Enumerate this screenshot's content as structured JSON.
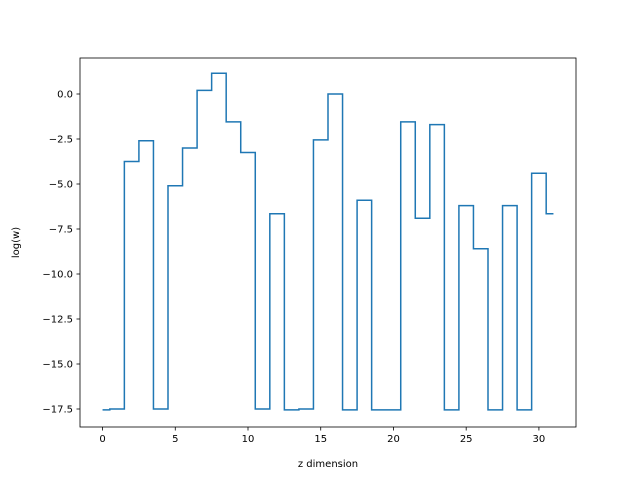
{
  "chart_data": {
    "type": "line",
    "drawstyle": "steps-mid",
    "title": "",
    "xlabel": "z dimension",
    "ylabel": "log(w)",
    "xlim": [
      -1.55,
      32.55
    ],
    "ylim": [
      -18.5,
      2.0
    ],
    "xticks": [
      0,
      5,
      10,
      15,
      20,
      25,
      30
    ],
    "xtick_labels": [
      "0",
      "5",
      "10",
      "15",
      "20",
      "25",
      "30"
    ],
    "yticks": [
      0.0,
      -2.5,
      -5.0,
      -7.5,
      -10.0,
      -12.5,
      -15.0,
      -17.5
    ],
    "ytick_labels": [
      "0.0",
      "−2.5",
      "−5.0",
      "−7.5",
      "−10.0",
      "−12.5",
      "−15.0",
      "−17.5"
    ],
    "grid": false,
    "series": [
      {
        "color": "#1f77b4",
        "x": [
          0,
          1,
          2,
          3,
          4,
          5,
          6,
          7,
          8,
          9,
          10,
          11,
          12,
          13,
          14,
          15,
          16,
          17,
          18,
          19,
          20,
          21,
          22,
          23,
          24,
          25,
          26,
          27,
          28,
          29,
          30,
          31
        ],
        "y": [
          -17.55,
          -17.5,
          -3.75,
          -2.6,
          -17.5,
          -5.1,
          -3.0,
          0.2,
          1.15,
          -1.55,
          -3.25,
          -17.5,
          -6.65,
          -17.55,
          -17.5,
          -2.55,
          0.0,
          -17.55,
          -5.9,
          -17.55,
          -17.55,
          -1.55,
          -6.9,
          -1.7,
          -17.55,
          -6.2,
          -8.6,
          -17.55,
          -6.2,
          -17.55,
          -4.4,
          -6.65
        ]
      }
    ]
  }
}
